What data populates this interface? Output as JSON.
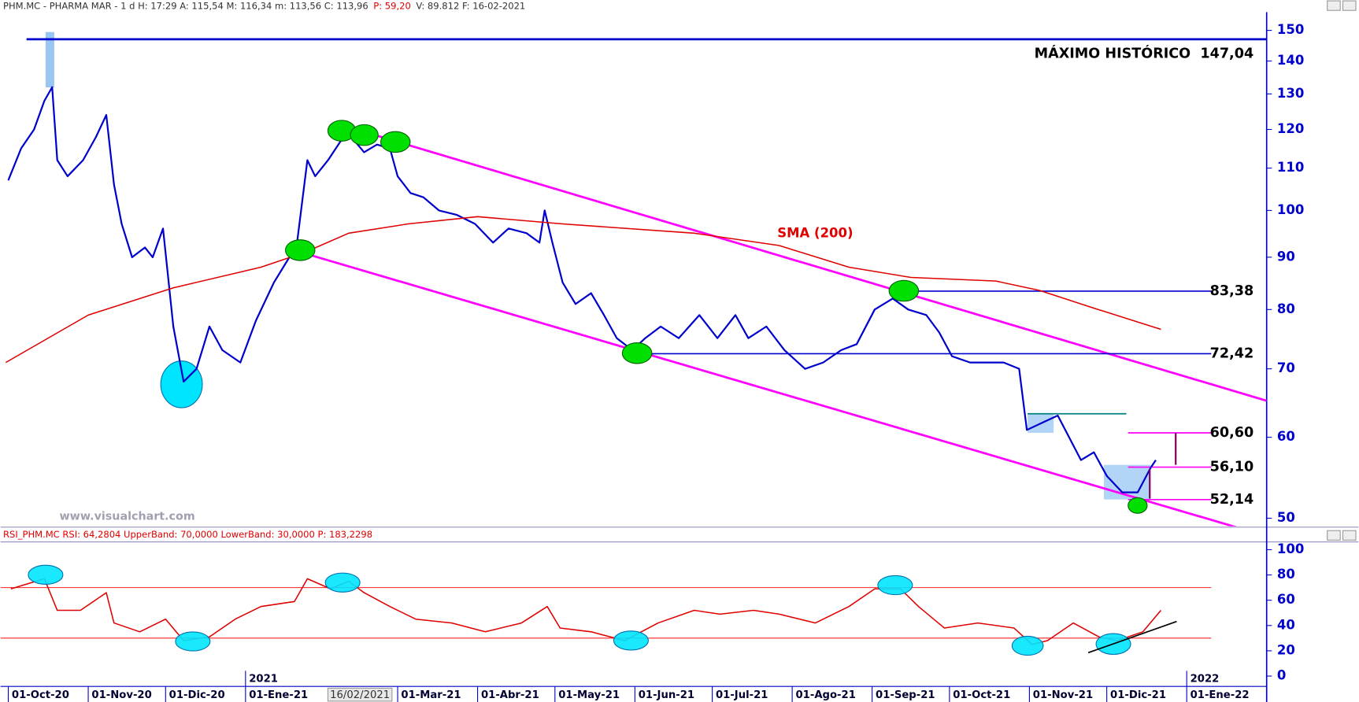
{
  "chart_data": [
    {
      "type": "line",
      "header": [
        "PHM.MC - PHARMA MAR -  1 d  H: 17:29  A: 115,54  M: 116,34  m: 113,56  C: 113,96",
        "P: 59,20",
        "V: 89.812  F: 16-02-2021"
      ],
      "log_scale": true,
      "xlim": [
        "2020-09-28",
        "2022-02-01"
      ],
      "ylim": [
        49.1,
        156.3
      ],
      "yticks": [
        50,
        60,
        70,
        80,
        90,
        100,
        110,
        120,
        130,
        140,
        150
      ],
      "x": [
        "2020-10-01",
        "2020-10-06",
        "2020-10-11",
        "2020-10-15",
        "2020-10-18",
        "2020-10-20",
        "2020-10-24",
        "2020-10-30",
        "2020-11-04",
        "2020-11-08",
        "2020-11-11",
        "2020-11-14",
        "2020-11-18",
        "2020-11-23",
        "2020-11-26",
        "2020-11-30",
        "2020-12-04",
        "2020-12-08",
        "2020-12-13",
        "2020-12-18",
        "2020-12-23",
        "2020-12-30",
        "2021-01-05",
        "2021-01-12",
        "2021-01-18",
        "2021-01-21",
        "2021-01-25",
        "2021-01-28",
        "2021-02-02",
        "2021-02-07",
        "2021-02-11",
        "2021-02-16",
        "2021-02-21",
        "2021-02-26",
        "2021-03-01",
        "2021-03-06",
        "2021-03-11",
        "2021-03-17",
        "2021-03-24",
        "2021-03-31",
        "2021-04-07",
        "2021-04-13",
        "2021-04-20",
        "2021-04-25",
        "2021-04-27",
        "2021-04-30",
        "2021-05-04",
        "2021-05-09",
        "2021-05-15",
        "2021-05-20",
        "2021-05-25",
        "2021-05-31",
        "2021-06-05",
        "2021-06-11",
        "2021-06-18",
        "2021-06-26",
        "2021-07-03",
        "2021-07-10",
        "2021-07-15",
        "2021-07-22",
        "2021-07-29",
        "2021-08-06",
        "2021-08-13",
        "2021-08-20",
        "2021-08-26",
        "2021-09-02",
        "2021-09-09",
        "2021-09-15",
        "2021-09-22",
        "2021-09-27",
        "2021-10-02",
        "2021-10-09",
        "2021-10-15",
        "2021-10-22",
        "2021-10-28",
        "2021-10-31",
        "2021-11-06",
        "2021-11-12",
        "2021-11-21",
        "2021-11-26",
        "2021-12-01",
        "2021-12-07",
        "2021-12-13",
        "2021-12-18",
        "2021-12-20"
      ],
      "series": [
        {
          "color": "#0000cc",
          "values": [
            107,
            115,
            120,
            128,
            132,
            112,
            108,
            112,
            118,
            124,
            106,
            97,
            90,
            92,
            90,
            96,
            77,
            68,
            70,
            77,
            73,
            71,
            78,
            85,
            90,
            93,
            112,
            108,
            112,
            117,
            118,
            114,
            116,
            115,
            108,
            104,
            103,
            100,
            99,
            97,
            93,
            96,
            95,
            93,
            100,
            93,
            85,
            81,
            83,
            79,
            75,
            73,
            75,
            77,
            75,
            79,
            75,
            79,
            75,
            77,
            73,
            70,
            71,
            73,
            74,
            80,
            82,
            80,
            79,
            76,
            72,
            71,
            71,
            71,
            70,
            61,
            62,
            63,
            57,
            58,
            55,
            53,
            53,
            56,
            57
          ]
        },
        {
          "name": "SMA (200)",
          "color": "#e00000",
          "x": [
            "2020-09-30",
            "2020-11-01",
            "2020-12-04",
            "2021-01-07",
            "2021-01-24",
            "2021-02-10",
            "2021-03-05",
            "2021-04-01",
            "2021-05-04",
            "2021-06-24",
            "2021-07-27",
            "2021-08-23",
            "2021-09-16",
            "2021-10-19",
            "2021-11-05",
            "2021-11-25",
            "2021-12-22"
          ],
          "values": [
            71,
            79,
            84,
            88,
            91,
            95,
            97,
            98.6,
            97,
            95,
            92.4,
            88,
            86,
            85.3,
            83.5,
            80.4,
            76.5
          ]
        }
      ],
      "levels": [
        {
          "value": 147.04,
          "label": "MÁXIMO HISTÓRICO  147,04",
          "color": "#0000cc"
        },
        {
          "value": 83.38,
          "label": "83,38",
          "color": "#0000cc"
        },
        {
          "value": 72.42,
          "label": "72,42",
          "color": "#0000cc"
        },
        {
          "value": 60.6,
          "label": "60,60",
          "color": "#ff00ff"
        },
        {
          "value": 56.1,
          "label": "56,10",
          "color": "#ff00ff"
        },
        {
          "value": 52.14,
          "label": "52,14",
          "color": "#ff00ff"
        }
      ],
      "watermark": "www.visualchart.com"
    },
    {
      "type": "line",
      "header": "RSI_PHM.MC  RSI: 64,2804  UpperBand: 70,0000  LowerBand: 30,0000  P: 183,2298",
      "xlim": [
        "2020-09-28",
        "2022-02-01"
      ],
      "ylim": [
        -8.2,
        105.5
      ],
      "yticks": [
        0,
        20,
        40,
        60,
        80,
        100
      ],
      "bands": [
        70,
        30
      ],
      "band_color": "#ff2020",
      "x": [
        "2020-10-02",
        "2020-10-15",
        "2020-10-20",
        "2020-10-29",
        "2020-11-08",
        "2020-11-11",
        "2020-11-21",
        "2020-12-01",
        "2020-12-08",
        "2020-12-18",
        "2020-12-28",
        "2021-01-07",
        "2021-01-20",
        "2021-01-25",
        "2021-02-03",
        "2021-02-10",
        "2021-02-16",
        "2021-02-26",
        "2021-03-08",
        "2021-03-22",
        "2021-04-04",
        "2021-04-18",
        "2021-04-28",
        "2021-05-03",
        "2021-05-15",
        "2021-05-28",
        "2021-06-10",
        "2021-06-24",
        "2021-07-04",
        "2021-07-17",
        "2021-07-27",
        "2021-08-10",
        "2021-08-23",
        "2021-09-02",
        "2021-09-12",
        "2021-09-19",
        "2021-09-29",
        "2021-10-12",
        "2021-10-26",
        "2021-11-02",
        "2021-11-08",
        "2021-11-18",
        "2021-11-28",
        "2021-12-05",
        "2021-12-15",
        "2021-12-22"
      ],
      "series": [
        {
          "color": "#e00000",
          "values": [
            69,
            77,
            52,
            52,
            66,
            42,
            35,
            45,
            28,
            31,
            45,
            55,
            59,
            77,
            69,
            75,
            66,
            55,
            45,
            42,
            35,
            42,
            55,
            38,
            35,
            28,
            42,
            52,
            49,
            52,
            49,
            42,
            55,
            69,
            69,
            55,
            38,
            42,
            38,
            25,
            28,
            42,
            31,
            28,
            35,
            52
          ]
        }
      ],
      "xticks": [
        {
          "value": "2020-10-01",
          "label": "01-Oct-20"
        },
        {
          "value": "2020-11-01",
          "label": "01-Nov-20"
        },
        {
          "value": "2020-12-01",
          "label": "01-Dic-20"
        },
        {
          "value": "2021-01-01",
          "label": "01-Ene-21"
        },
        {
          "value": "2021-03-01",
          "label": "01-Mar-21"
        },
        {
          "value": "2021-04-01",
          "label": "01-Abr-21"
        },
        {
          "value": "2021-05-01",
          "label": "01-May-21"
        },
        {
          "value": "2021-06-01",
          "label": "01-Jun-21"
        },
        {
          "value": "2021-07-01",
          "label": "01-Jul-21"
        },
        {
          "value": "2021-08-01",
          "label": "01-Ago-21"
        },
        {
          "value": "2021-09-01",
          "label": "01-Sep-21"
        },
        {
          "value": "2021-10-01",
          "label": "01-Oct-21"
        },
        {
          "value": "2021-11-01",
          "label": "01-Nov-21"
        },
        {
          "value": "2021-12-01",
          "label": "01-Dic-21"
        },
        {
          "value": "2022-01-01",
          "label": "01-Ene-22"
        }
      ],
      "year_labels": [
        {
          "value": "2021-01-01",
          "label": "2021"
        },
        {
          "value": "2022-01-01",
          "label": "2022"
        }
      ],
      "cursor_label": "16/02/2021"
    }
  ]
}
